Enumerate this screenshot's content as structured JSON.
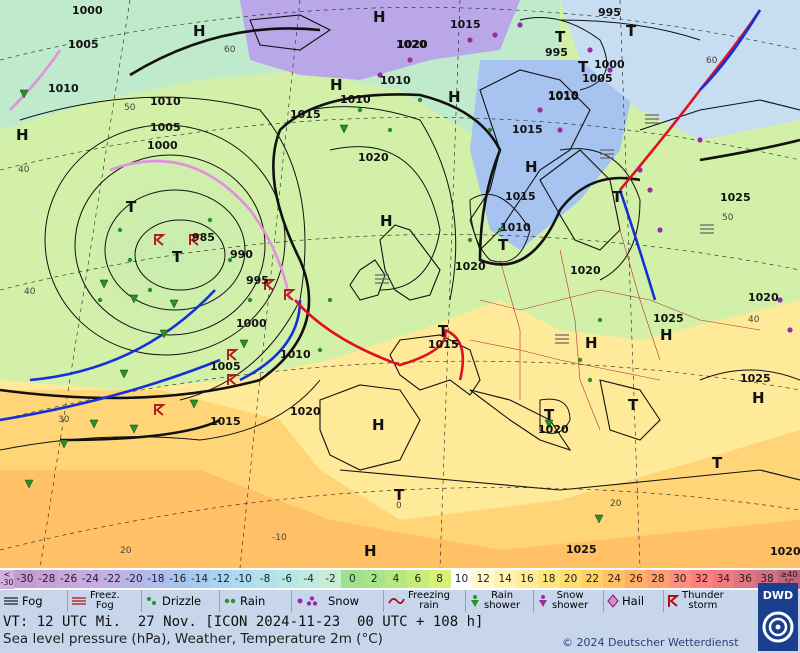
{
  "map": {
    "pressure_labels": [
      "1000",
      "1005",
      "1010",
      "1015",
      "995",
      "1020",
      "1010",
      "1005",
      "1000",
      "1015",
      "1010",
      "1020",
      "1015",
      "1010",
      "1020",
      "1025",
      "985",
      "990",
      "995",
      "1000",
      "1005",
      "1010",
      "1015",
      "1020",
      "1015",
      "1025",
      "1025",
      "1020",
      "1015",
      "1020",
      "1025",
      "1020",
      "1020",
      "1010",
      "1000",
      "1005",
      "1010",
      "995",
      "1015",
      "1010",
      "1020"
    ],
    "high_markers": [
      "H",
      "H",
      "H",
      "H",
      "H",
      "H",
      "H",
      "H",
      "H",
      "H",
      "H",
      "H"
    ],
    "low_markers": [
      "T",
      "T",
      "T",
      "T",
      "T",
      "T",
      "T",
      "T",
      "T",
      "T",
      "T",
      "T"
    ],
    "latitude_labels": [
      "60",
      "50",
      "40",
      "40",
      "30",
      "20",
      "20",
      "60",
      "50",
      "40"
    ],
    "longitude_labels": [
      "0",
      "-10"
    ]
  },
  "temperature_scale": {
    "low_label": [
      "<",
      "-30"
    ],
    "values": [
      "-30",
      "-28",
      "-26",
      "-24",
      "-22",
      "-20",
      "-18",
      "-16",
      "-14",
      "-12",
      "-10",
      "-8",
      "-6",
      "-4",
      "-2",
      "0",
      "2",
      "4",
      "6",
      "8",
      "10",
      "12",
      "14",
      "16",
      "18",
      "20",
      "22",
      "24",
      "26",
      "28",
      "30",
      "32",
      "34",
      "36",
      "38"
    ],
    "high_label": [
      "≥40",
      "°C"
    ],
    "colors": [
      "#c39bd3",
      "#c7a0d8",
      "#c9a6dc",
      "#c7aae0",
      "#bfb0e6",
      "#b6b6ea",
      "#aebcee",
      "#a7c3f0",
      "#a5cbf2",
      "#a8d3f2",
      "#acdaf0",
      "#b0e1ec",
      "#b6e6e6",
      "#bfeadf",
      "#c8edd6",
      "#9fe08e",
      "#a6e48a",
      "#b5e882",
      "#c6ed7c",
      "#d8f078",
      "#ffffff",
      "#fff9cc",
      "#fff4b3",
      "#ffee99",
      "#ffe680",
      "#ffdd70",
      "#ffd066",
      "#ffc066",
      "#ffb066",
      "#ffa070",
      "#ff9080",
      "#ff8080",
      "#f07a80",
      "#e07580",
      "#d07080"
    ]
  },
  "legend": [
    {
      "icon": "fog-icon",
      "label": "Fog"
    },
    {
      "icon": "freezing-fog-icon",
      "label": "Freez.\nFog"
    },
    {
      "icon": "drizzle-icon",
      "label": "Drizzle"
    },
    {
      "icon": "rain-icon",
      "label": "Rain"
    },
    {
      "icon": "snow-icon",
      "label": "Snow"
    },
    {
      "icon": "freezing-rain-icon",
      "label": "Freezing\nrain"
    },
    {
      "icon": "rain-shower-icon",
      "label": "Rain\nshower"
    },
    {
      "icon": "snow-shower-icon",
      "label": "Snow\nshower"
    },
    {
      "icon": "hail-icon",
      "label": "Hail"
    },
    {
      "icon": "thunderstorm-icon",
      "label": "Thunder\nstorm"
    }
  ],
  "footer": {
    "valid_time": "VT: 12 UTC Mi.  27 Nov. [ICON 2024-11-23  00 UTC + 108 h]",
    "subtitle": "Sea level pressure (hPa), Weather, Temperature 2m (°C)",
    "copyright": "© 2024 Deutscher Wetterdienst",
    "logo_text": "DWD"
  }
}
